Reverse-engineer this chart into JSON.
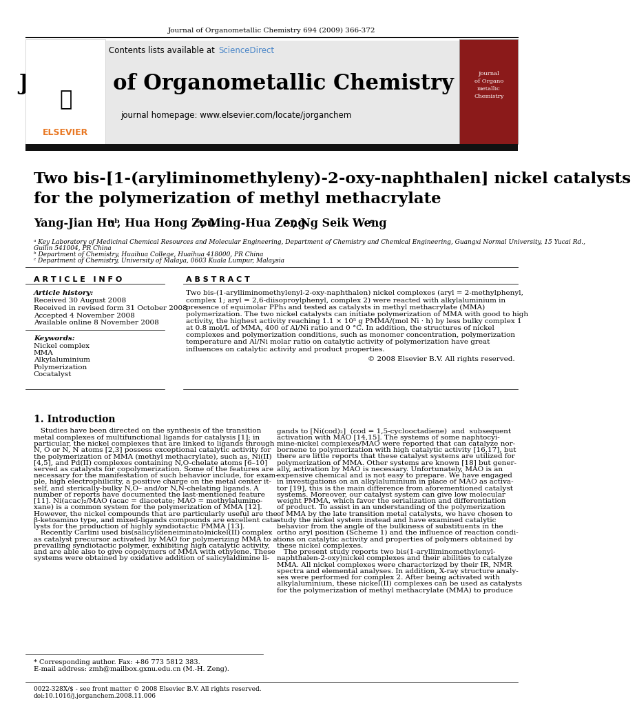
{
  "journal_ref": "Journal of Organometallic Chemistry 694 (2009) 366-372",
  "header_bg": "#e8e8e8",
  "sciencedirect_color": "#4a86c8",
  "journal_title": "Journal of Organometallic Chemistry",
  "journal_homepage": "journal homepage: www.elsevier.com/locate/jorganchem",
  "article_title_line1": "Two bis-[1-(aryliminomethyleny)-2-oxy-naphthalen] nickel catalysts",
  "article_title_line2": "for the polymerization of methyl methacrylate",
  "article_info_header": "A R T I C L E   I N F O",
  "abstract_header": "A B S T R A C T",
  "article_history_label": "Article history:",
  "received": "Received 30 August 2008",
  "received_revised": "Received in revised form 31 October 2008",
  "accepted": "Accepted 4 November 2008",
  "available_online": "Available online 8 November 2008",
  "keywords_label": "Keywords:",
  "keywords": [
    "Nickel complex",
    "MMA",
    "Alkylaluminium",
    "Polymerization",
    "Cocatalyst"
  ],
  "abstract_text": "Two bis-(1-arylliminomethylenyl-2-oxy-naphthalen) nickel complexes (aryl = 2-methylphenyl, complex 1; aryl = 2,6-diisoproylphenyl, complex 2) were reacted with alkylaluminium in presence of equimolar PPh₃ and tested as catalysts in methyl methacrylate (MMA) polymerization. The two nickel catalysts can initiate polymerization of MMA with good to high activity, the highest activity reaching 1.1 × 10⁵ g PMMA/(mol Ni · h) by less bulky complex 1 at 0.8 mol/L of MMA, 400 of Al/Ni ratio and 0 °C. In addition, the structures of nickel complexes and polymerization conditions, such as monomer concentration, polymerization temperature and Al/Ni molar ratio on catalytic activity of polymerization have great influences on catalytic activity and product properties.",
  "copyright": "© 2008 Elsevier B.V. All rights reserved.",
  "intro_header": "1. Introduction",
  "footnote1": "* Corresponding author. Fax: +86 773 5812 383.",
  "footnote2": "E-mail address: zmh@mailbox.gxnu.edu.cn (M.-H. Zeng).",
  "footer1": "0022-328X/$ - see front matter © 2008 Elsevier B.V. All rights reserved.",
  "footer2": "doi:10.1016/j.jorganchem.2008.11.006",
  "bg_color": "#ffffff",
  "text_color": "#000000",
  "elsevier_orange": "#e87722"
}
